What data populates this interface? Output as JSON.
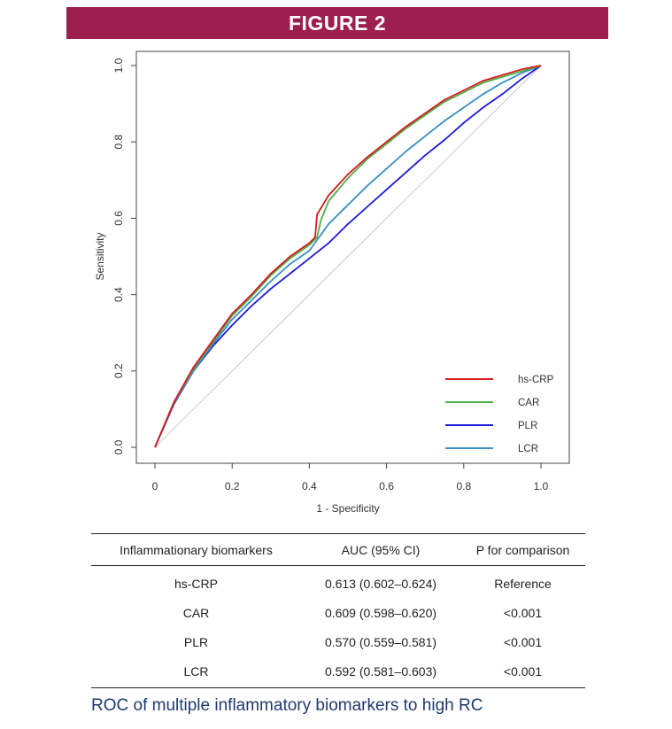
{
  "header": {
    "title": "FIGURE 2"
  },
  "chart_data": {
    "type": "line",
    "xlabel": "1 - Specificity",
    "ylabel": "Sensitivity",
    "xlim": [
      0,
      1
    ],
    "ylim": [
      0,
      1
    ],
    "x_ticks": [
      "0",
      "0.2",
      "0.4",
      "0.6",
      "0.8",
      "1.0"
    ],
    "y_ticks": [
      "0.0",
      "0.2",
      "0.4",
      "0.6",
      "0.8",
      "1.0"
    ],
    "grid": false,
    "legend_position": "bottom-right",
    "reference_line": {
      "x": [
        0,
        1
      ],
      "y": [
        0,
        1
      ],
      "color": "#c8c8c8"
    },
    "series": [
      {
        "name": "hs-CRP",
        "color": "#d7191c",
        "x": [
          0,
          0.05,
          0.1,
          0.15,
          0.2,
          0.25,
          0.3,
          0.35,
          0.4,
          0.415,
          0.42,
          0.45,
          0.5,
          0.55,
          0.6,
          0.65,
          0.7,
          0.75,
          0.8,
          0.85,
          0.9,
          0.95,
          1.0
        ],
        "y": [
          0,
          0.12,
          0.21,
          0.28,
          0.35,
          0.4,
          0.455,
          0.5,
          0.535,
          0.55,
          0.61,
          0.66,
          0.715,
          0.76,
          0.8,
          0.84,
          0.875,
          0.91,
          0.935,
          0.96,
          0.975,
          0.99,
          1.0
        ]
      },
      {
        "name": "CAR",
        "color": "#4daf4a",
        "x": [
          0,
          0.05,
          0.1,
          0.15,
          0.2,
          0.25,
          0.3,
          0.35,
          0.4,
          0.42,
          0.43,
          0.45,
          0.5,
          0.55,
          0.6,
          0.65,
          0.7,
          0.75,
          0.8,
          0.85,
          0.9,
          0.95,
          1.0
        ],
        "y": [
          0,
          0.12,
          0.205,
          0.275,
          0.345,
          0.395,
          0.45,
          0.495,
          0.53,
          0.55,
          0.595,
          0.645,
          0.705,
          0.755,
          0.795,
          0.835,
          0.87,
          0.905,
          0.93,
          0.955,
          0.97,
          0.985,
          1.0
        ]
      },
      {
        "name": "PLR",
        "color": "#1a1adc",
        "x": [
          0,
          0.05,
          0.1,
          0.15,
          0.2,
          0.25,
          0.3,
          0.35,
          0.4,
          0.45,
          0.5,
          0.55,
          0.6,
          0.65,
          0.7,
          0.75,
          0.8,
          0.85,
          0.9,
          0.95,
          1.0
        ],
        "y": [
          0,
          0.115,
          0.2,
          0.265,
          0.32,
          0.37,
          0.415,
          0.455,
          0.495,
          0.535,
          0.585,
          0.63,
          0.675,
          0.72,
          0.765,
          0.805,
          0.85,
          0.89,
          0.925,
          0.965,
          1.0
        ]
      },
      {
        "name": "LCR",
        "color": "#3a8fc4",
        "x": [
          0,
          0.05,
          0.1,
          0.15,
          0.2,
          0.25,
          0.3,
          0.35,
          0.4,
          0.45,
          0.5,
          0.55,
          0.6,
          0.65,
          0.7,
          0.75,
          0.8,
          0.85,
          0.9,
          0.95,
          1.0
        ],
        "y": [
          0,
          0.118,
          0.2,
          0.27,
          0.335,
          0.385,
          0.435,
          0.48,
          0.515,
          0.585,
          0.635,
          0.685,
          0.73,
          0.775,
          0.815,
          0.855,
          0.89,
          0.925,
          0.955,
          0.98,
          1.0
        ]
      }
    ]
  },
  "table": {
    "headers": [
      "Inflammationary biomarkers",
      "AUC (95% CI)",
      "P for comparison"
    ],
    "rows": [
      [
        "hs-CRP",
        "0.613 (0.602–0.624)",
        "Reference"
      ],
      [
        "CAR",
        "0.609 (0.598–0.620)",
        "<0.001"
      ],
      [
        "PLR",
        "0.570 (0.559–0.581)",
        "<0.001"
      ],
      [
        "LCR",
        "0.592 (0.581–0.603)",
        "<0.001"
      ]
    ]
  },
  "caption": "ROC of multiple inflammatory biomarkers to high RC"
}
